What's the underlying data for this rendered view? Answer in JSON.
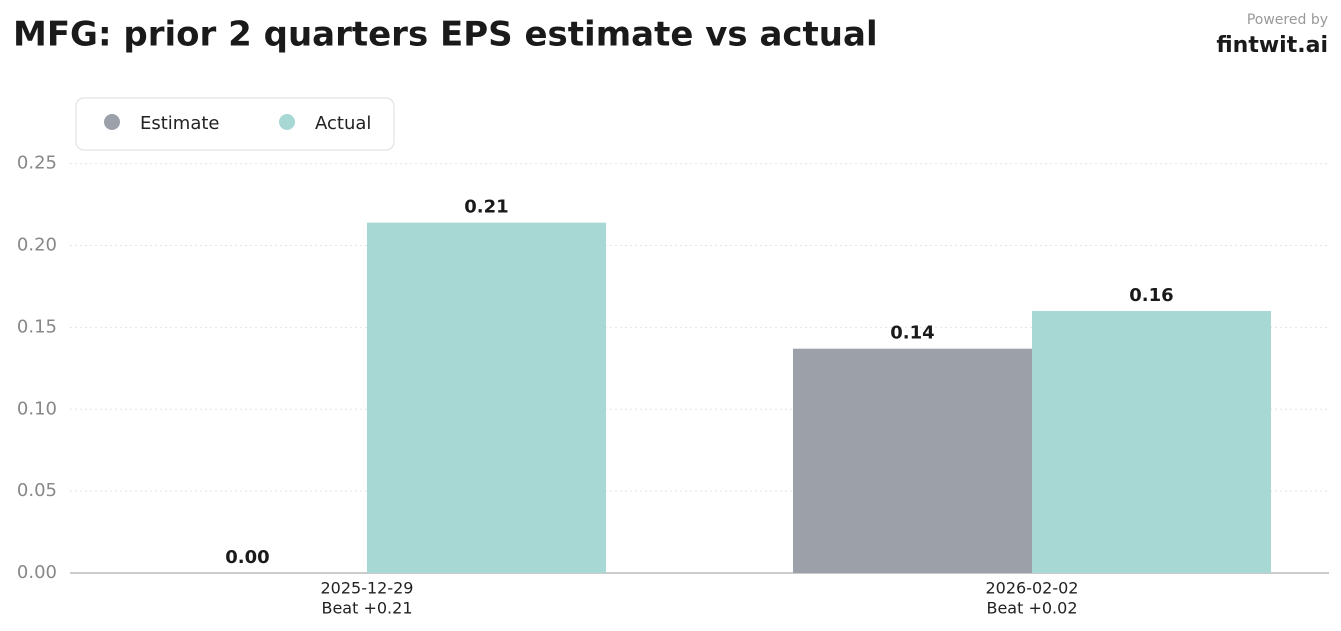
{
  "chart_data": {
    "type": "bar",
    "title": "MFG: prior 2 quarters EPS estimate vs actual",
    "categories": [
      "2025-12-29",
      "2026-02-02"
    ],
    "category_notes": [
      "Beat +0.21",
      "Beat +0.02"
    ],
    "series": [
      {
        "name": "Estimate",
        "color": "#9ca0a8",
        "values": [
          0,
          0.137
        ],
        "value_labels": [
          "0.00",
          "0.14"
        ]
      },
      {
        "name": "Actual",
        "color": "#a8d8d4",
        "values": [
          0.214,
          0.16
        ],
        "value_labels": [
          "0.21",
          "0.16"
        ]
      }
    ],
    "ylim": [
      0,
      0.295
    ],
    "yticks": [
      {
        "value": 0,
        "label": "0.00"
      },
      {
        "value": 0.05,
        "label": "0.05"
      },
      {
        "value": 0.1,
        "label": "0.10"
      },
      {
        "value": 0.15,
        "label": "0.15"
      },
      {
        "value": 0.2,
        "label": "0.20"
      },
      {
        "value": 0.25,
        "label": "0.25"
      }
    ],
    "grid": true,
    "legend": "top-left"
  },
  "branding": {
    "label": "Powered by",
    "name": "fintwit.ai"
  }
}
